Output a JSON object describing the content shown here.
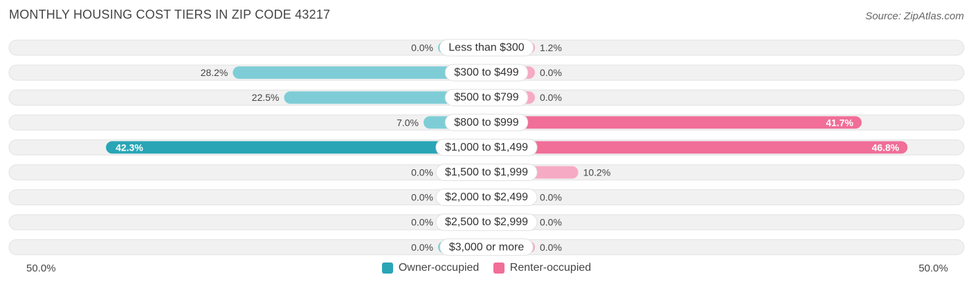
{
  "title": "MONTHLY HOUSING COST TIERS IN ZIP CODE 43217",
  "source": "Source: ZipAtlas.com",
  "axis": {
    "left_label": "50.0%",
    "right_label": "50.0%"
  },
  "legend": {
    "owner_label": "Owner-occupied",
    "renter_label": "Renter-occupied"
  },
  "colors": {
    "owner_strong": "#29a5b6",
    "owner_light": "#7ecdd6",
    "renter_strong": "#f06e98",
    "renter_light": "#f6aac3",
    "track": "#f1f1f1"
  },
  "chart_data": {
    "type": "bar",
    "orientation": "diverging-horizontal",
    "title": "MONTHLY HOUSING COST TIERS IN ZIP CODE 43217",
    "xlim": [
      -50,
      50
    ],
    "categories": [
      "Less than $300",
      "$300 to $499",
      "$500 to $799",
      "$800 to $999",
      "$1,000 to $1,499",
      "$1,500 to $1,999",
      "$2,000 to $2,499",
      "$2,500 to $2,999",
      "$3,000 or more"
    ],
    "series": [
      {
        "name": "Owner-occupied",
        "values": [
          0.0,
          28.2,
          22.5,
          7.0,
          42.3,
          0.0,
          0.0,
          0.0,
          0.0
        ],
        "labels": [
          "0.0%",
          "28.2%",
          "22.5%",
          "7.0%",
          "42.3%",
          "0.0%",
          "0.0%",
          "0.0%",
          "0.0%"
        ]
      },
      {
        "name": "Renter-occupied",
        "values": [
          1.2,
          0.0,
          0.0,
          41.7,
          46.8,
          10.2,
          0.0,
          0.0,
          0.0
        ],
        "labels": [
          "1.2%",
          "0.0%",
          "0.0%",
          "41.7%",
          "46.8%",
          "10.2%",
          "0.0%",
          "0.0%",
          "0.0%"
        ]
      }
    ]
  }
}
